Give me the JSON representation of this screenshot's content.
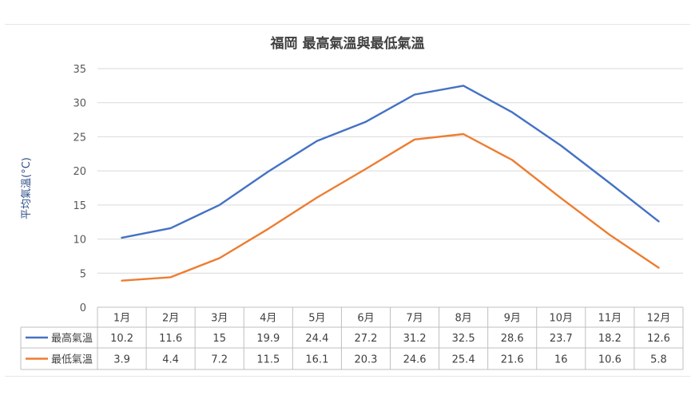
{
  "chart_data": {
    "type": "line",
    "title": "福岡 最高氣溫與最低氣溫",
    "xlabel": "",
    "ylabel": "平均氣溫(°C)",
    "ylim": [
      0,
      35
    ],
    "yticks": [
      0,
      5,
      10,
      15,
      20,
      25,
      30,
      35
    ],
    "grid": true,
    "legend": "data-table-left",
    "categories": [
      "1月",
      "2月",
      "3月",
      "4月",
      "5月",
      "6月",
      "7月",
      "8月",
      "9月",
      "10月",
      "11月",
      "12月"
    ],
    "series": [
      {
        "name": "最高氣溫",
        "color": "#4472c4",
        "values": [
          10.2,
          11.6,
          15,
          19.9,
          24.4,
          27.2,
          31.2,
          32.5,
          28.6,
          23.7,
          18.2,
          12.6
        ],
        "labels": [
          "10.2",
          "11.6",
          "15",
          "19.9",
          "24.4",
          "27.2",
          "31.2",
          "32.5",
          "28.6",
          "23.7",
          "18.2",
          "12.6"
        ]
      },
      {
        "name": "最低氣溫",
        "color": "#ed7d31",
        "values": [
          3.9,
          4.4,
          7.2,
          11.5,
          16.1,
          20.3,
          24.6,
          25.4,
          21.6,
          16,
          10.6,
          5.8
        ],
        "labels": [
          "3.9",
          "4.4",
          "7.2",
          "11.5",
          "16.1",
          "20.3",
          "24.6",
          "25.4",
          "21.6",
          "16",
          "10.6",
          "5.8"
        ]
      }
    ]
  }
}
